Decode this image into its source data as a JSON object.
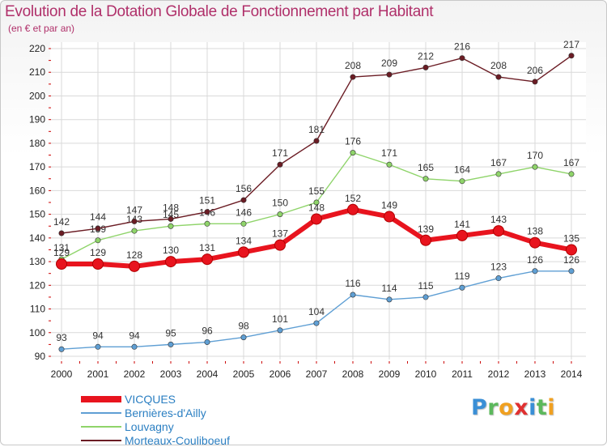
{
  "colors": {
    "title": "#b0306a",
    "legend_text": "#2b7fc2",
    "grid": "#d9d9d9",
    "axis_ticks": "#cc0000"
  },
  "brand": {
    "logo_letters": [
      {
        "char": "P",
        "color": "#3a8fd6"
      },
      {
        "char": "r",
        "color": "#5cb85c"
      },
      {
        "char": "o",
        "color": "#f0a020"
      },
      {
        "char": "x",
        "color": "#e03030"
      },
      {
        "char": "i",
        "color": "#3a8fd6"
      },
      {
        "char": "t",
        "color": "#5cb85c"
      },
      {
        "char": "i",
        "color": "#f0a020"
      }
    ]
  },
  "chart_data": {
    "type": "line",
    "title": "Evolution de la Dotation Globale de Fonctionnement par Habitant",
    "subtitle": "(en € et par an)",
    "xlabel": "",
    "ylabel": "",
    "x": [
      "2000",
      "2001",
      "2002",
      "2003",
      "2004",
      "2005",
      "2006",
      "2007",
      "2008",
      "2009",
      "2010",
      "2011",
      "2012",
      "2013",
      "2014"
    ],
    "ylim": [
      90,
      220
    ],
    "yticks": [
      90,
      100,
      110,
      120,
      130,
      140,
      150,
      160,
      170,
      180,
      190,
      200,
      210,
      220
    ],
    "grid": true,
    "legend_position": "bottom-left",
    "series": [
      {
        "name": "VICQUES",
        "color": "#e8141e",
        "emphasis": true,
        "values": [
          129,
          129,
          128,
          130,
          131,
          134,
          137,
          148,
          152,
          149,
          139,
          141,
          143,
          138,
          135
        ]
      },
      {
        "name": "Bernières-d'Ailly",
        "color": "#5f9fd4",
        "emphasis": false,
        "values": [
          93,
          94,
          94,
          95,
          96,
          98,
          101,
          104,
          116,
          114,
          115,
          119,
          123,
          126,
          126
        ]
      },
      {
        "name": "Louvagny",
        "color": "#8fd46a",
        "emphasis": false,
        "values": [
          131,
          139,
          143,
          145,
          146,
          146,
          150,
          155,
          176,
          171,
          165,
          164,
          167,
          170,
          167
        ]
      },
      {
        "name": "Morteaux-Couliboeuf",
        "color": "#6b1c24",
        "emphasis": false,
        "values": [
          142,
          144,
          147,
          148,
          151,
          156,
          171,
          181,
          208,
          209,
          212,
          216,
          208,
          206,
          217
        ]
      }
    ]
  }
}
